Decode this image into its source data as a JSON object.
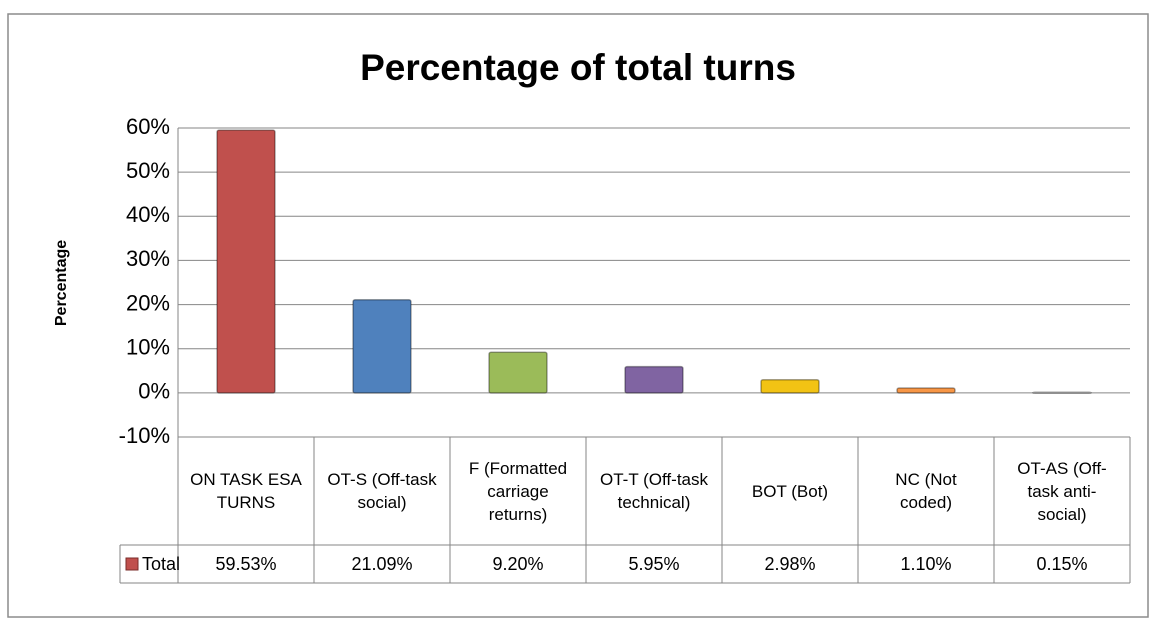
{
  "chart_data": {
    "type": "bar",
    "title": "Percentage of total turns",
    "y_label": "Percentage",
    "categories": [
      "ON TASK ESA TURNS",
      "OT-S (Off-task social)",
      "F (Formatted carriage returns)",
      "OT-T (Off-task technical)",
      "BOT (Bot)",
      "NC (Not coded)",
      "OT-AS (Off-task anti-social)"
    ],
    "series": [
      {
        "name": "Total",
        "color": "#c0504d",
        "colors": [
          "#c0504d",
          "#4f81bd",
          "#9bbb59",
          "#8064a2",
          "#f2c314",
          "#f79646",
          "#d9d9d9"
        ],
        "values": [
          59.53,
          21.09,
          9.2,
          5.95,
          2.98,
          1.1,
          0.15
        ],
        "value_labels": [
          "59.53%",
          "21.09%",
          "9.20%",
          "5.95%",
          "2.98%",
          "1.10%",
          "0.15%"
        ]
      }
    ],
    "ylim": [
      -10,
      60
    ],
    "yticks": [
      {
        "value": -10,
        "label": "-10%"
      },
      {
        "value": 0,
        "label": "0%"
      },
      {
        "value": 10,
        "label": "10%"
      },
      {
        "value": 20,
        "label": "20%"
      },
      {
        "value": 30,
        "label": "30%"
      },
      {
        "value": 40,
        "label": "40%"
      },
      {
        "value": 50,
        "label": "50%"
      },
      {
        "value": 60,
        "label": "60%"
      }
    ],
    "grid": true
  }
}
